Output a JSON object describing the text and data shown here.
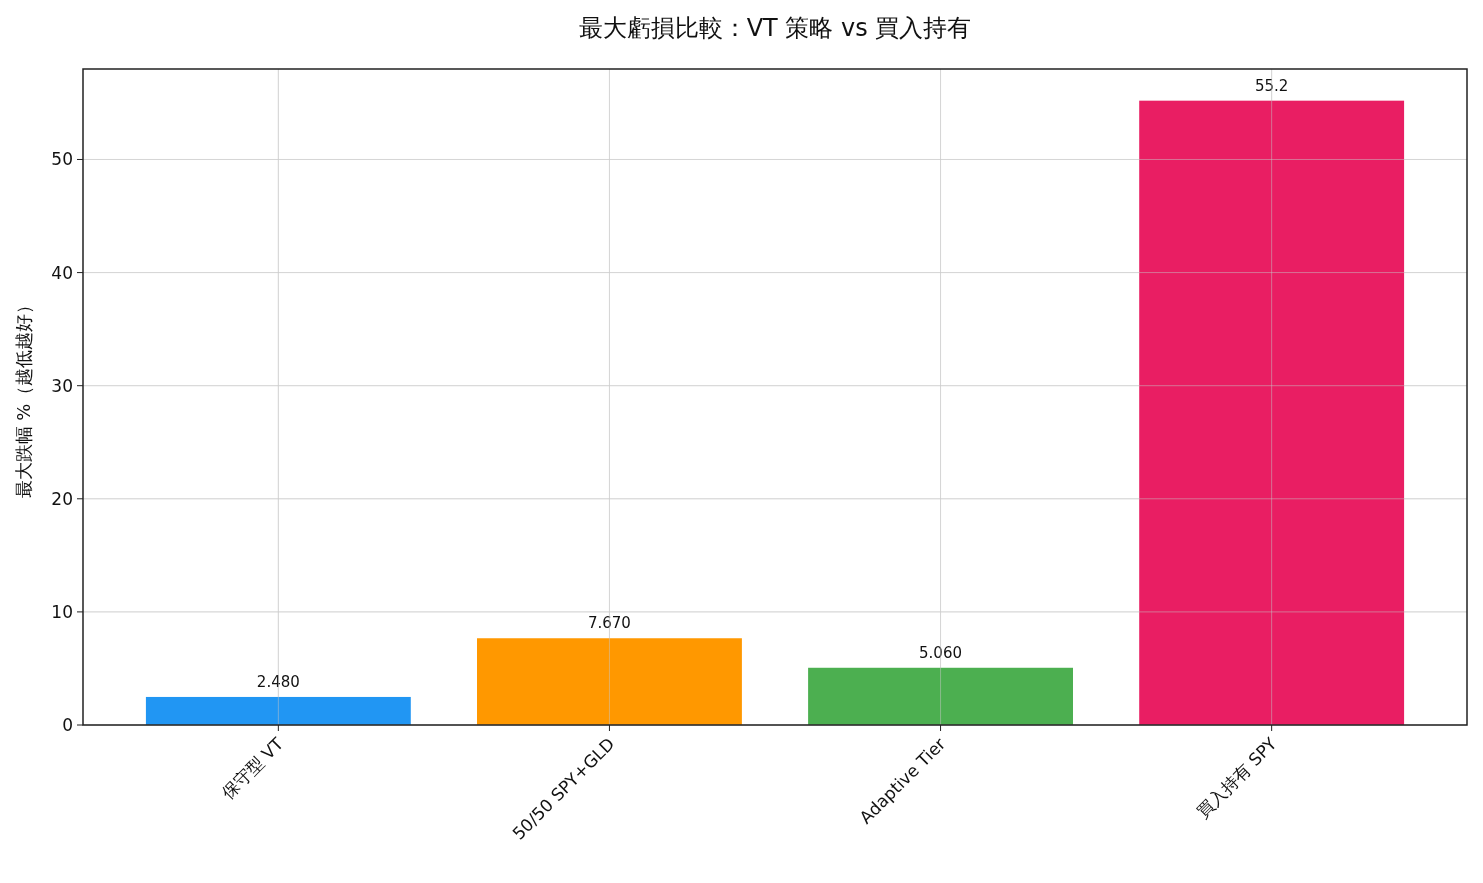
{
  "chart_data": {
    "type": "bar",
    "title": "最大虧損比較：VT 策略 vs 買入持有",
    "ylabel": "最大跌幅 %（越低越好）",
    "categories": [
      "保守型 VT",
      "50/50 SPY+GLD",
      "Adaptive Tier",
      "買入持有 SPY"
    ],
    "values": [
      2.48,
      7.67,
      5.06,
      55.2
    ],
    "value_labels": [
      "2.480",
      "7.670",
      "5.060",
      "55.2"
    ],
    "colors": [
      "#2196f3",
      "#ff9800",
      "#4caf50",
      "#e91e63"
    ],
    "ylim": [
      0,
      58
    ],
    "yticks": [
      0,
      10,
      20,
      30,
      40,
      50
    ],
    "grid": true
  }
}
